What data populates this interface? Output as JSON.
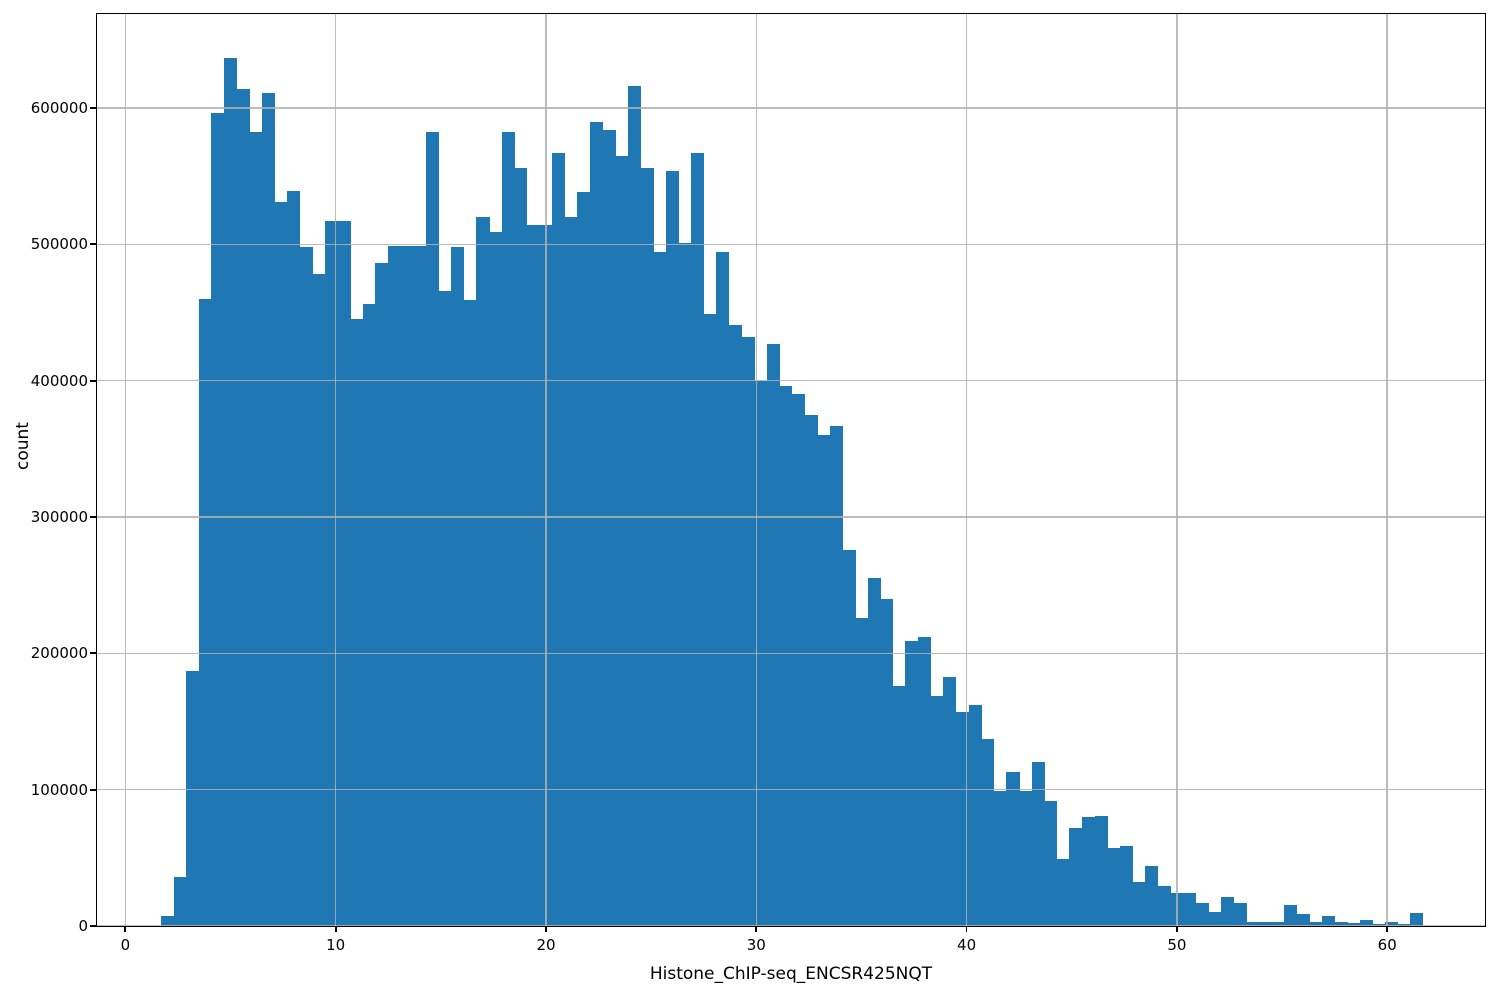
{
  "figure": {
    "background": "#ffffff"
  },
  "chart_data": {
    "type": "bar",
    "subtype": "histogram",
    "title": "",
    "xlabel": "Histone_ChIP-seq_ENCSR425NQT",
    "ylabel": "count",
    "bar_color": "#1f77b4",
    "grid_color": "#b0b0b0",
    "grid": true,
    "legend": false,
    "bin_start": 1.69,
    "bin_width": 0.6,
    "xlim": [
      -1.35,
      64.65
    ],
    "ylim": [
      0,
      668900
    ],
    "x_tick_values": [
      0,
      10,
      20,
      30,
      40,
      50,
      60
    ],
    "x_tick_labels": [
      "0",
      "10",
      "20",
      "30",
      "40",
      "50",
      "60"
    ],
    "y_tick_values": [
      0,
      100000,
      200000,
      300000,
      400000,
      500000,
      600000
    ],
    "y_tick_labels": [
      "0",
      "100000",
      "200000",
      "300000",
      "400000",
      "500000",
      "600000"
    ],
    "values": [
      7000,
      36000,
      187000,
      460000,
      596000,
      637000,
      614000,
      582000,
      611000,
      531000,
      539000,
      498000,
      478000,
      517000,
      517000,
      445000,
      456000,
      486000,
      499000,
      499000,
      499000,
      582000,
      466000,
      498000,
      459000,
      520000,
      509000,
      582000,
      556000,
      514000,
      514000,
      567000,
      520000,
      538000,
      590000,
      584000,
      565000,
      616000,
      556000,
      494000,
      554000,
      501000,
      567000,
      449000,
      494000,
      441000,
      432000,
      400000,
      427000,
      396000,
      390000,
      375000,
      360000,
      367000,
      276000,
      226000,
      255000,
      240000,
      176000,
      209000,
      212000,
      169000,
      183000,
      157000,
      162000,
      137000,
      99000,
      113000,
      99000,
      120000,
      92000,
      49000,
      72000,
      80000,
      81000,
      57000,
      59000,
      32000,
      44000,
      29000,
      24500,
      24000,
      17000,
      10000,
      21000,
      17000,
      3300,
      3300,
      3300,
      15500,
      9000,
      3300,
      7000,
      3300,
      2000,
      4700,
      1600,
      3300,
      1600,
      9600
    ]
  }
}
